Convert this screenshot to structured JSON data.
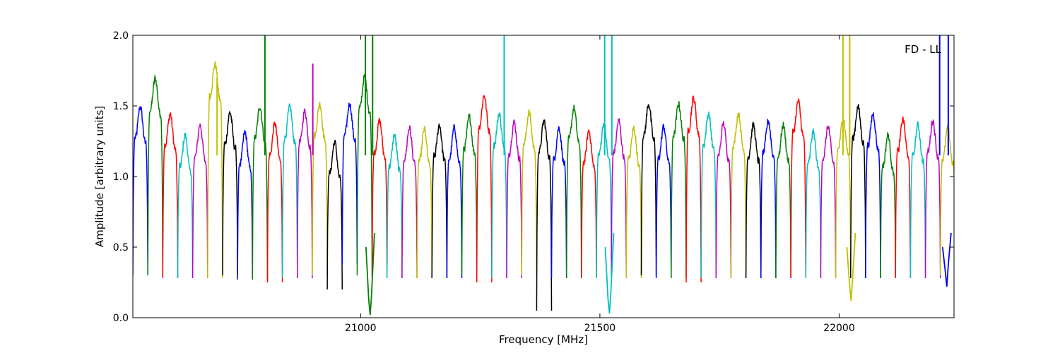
{
  "chart_data": {
    "type": "line",
    "title": "",
    "annotation": "FD - LL",
    "xlabel": "Frequency [MHz]",
    "ylabel": "Amplitude [arbitrary units]",
    "xlim": [
      20524,
      22240
    ],
    "ylim": [
      0.0,
      2.0
    ],
    "x_ticks": [
      21000,
      21500,
      22000
    ],
    "y_ticks": [
      0.0,
      0.5,
      1.0,
      1.5,
      2.0
    ],
    "y_tick_labels": [
      "0.0",
      "0.5",
      "1.0",
      "1.5",
      "2.0"
    ],
    "grid": false,
    "legend": "none",
    "bands": {
      "width_mhz": 31.25,
      "count": 55,
      "start_mhz": 20524,
      "color_cycle": [
        "#0000ff",
        "#008000",
        "#ff0000",
        "#00bfbf",
        "#bf00bf",
        "#bfbf00",
        "#000000"
      ],
      "band_peak": [
        1.4,
        1.6,
        1.35,
        1.2,
        1.27,
        1.7,
        1.36,
        1.22,
        1.4,
        1.28,
        1.4,
        1.37,
        1.42,
        1.15,
        1.42,
        1.61,
        1.3,
        1.2,
        1.25,
        1.24,
        1.27,
        1.25,
        1.33,
        1.48,
        1.35,
        1.29,
        1.36,
        1.3,
        1.25,
        1.39,
        1.23,
        1.28,
        1.3,
        1.25,
        1.42,
        1.26,
        1.42,
        1.46,
        1.35,
        1.28,
        1.35,
        1.27,
        1.3,
        1.27,
        1.44,
        1.22,
        1.26,
        1.32,
        1.4,
        1.35,
        1.2,
        1.31,
        1.27,
        1.3,
        1.25
      ],
      "band_trough": [
        0.3,
        0.3,
        0.28,
        0.28,
        0.28,
        0.28,
        0.3,
        0.27,
        0.27,
        0.25,
        0.28,
        0.28,
        0.3,
        0.2,
        0.38,
        0.3,
        0.28,
        0.28,
        0.28,
        0.28,
        0.28,
        0.28,
        0.3,
        0.25,
        0.28,
        0.28,
        0.3,
        0.05,
        0.28,
        0.28,
        0.28,
        0.28,
        0.28,
        0.28,
        0.3,
        0.28,
        0.28,
        0.25,
        0.28,
        0.28,
        0.28,
        0.28,
        0.28,
        0.28,
        0.28,
        0.28,
        0.28,
        0.28,
        0.28,
        0.28,
        0.28,
        0.28,
        0.28,
        0.28,
        0.3
      ]
    },
    "spikes": [
      {
        "x": 20700,
        "y": 1.7,
        "color": "#bfbf00"
      },
      {
        "x": 20800,
        "y": 2.0,
        "color": "#008000"
      },
      {
        "x": 20900,
        "y": 1.8,
        "color": "#bf00bf"
      },
      {
        "x": 21010,
        "y": 2.0,
        "color": "#008000"
      },
      {
        "x": 21025,
        "y": 2.0,
        "color": "#008000"
      },
      {
        "x": 21300,
        "y": 2.0,
        "color": "#00bfbf"
      },
      {
        "x": 21510,
        "y": 2.0,
        "color": "#00bfbf"
      },
      {
        "x": 21525,
        "y": 2.0,
        "color": "#00bfbf"
      },
      {
        "x": 22008,
        "y": 2.0,
        "color": "#bfbf00"
      },
      {
        "x": 22022,
        "y": 2.0,
        "color": "#bfbf00"
      },
      {
        "x": 22210,
        "y": 2.0,
        "color": "#0000ff"
      },
      {
        "x": 22228,
        "y": 2.0,
        "color": "#0000ff"
      }
    ],
    "dips": [
      {
        "x": 21020,
        "y": 0.02,
        "color": "#008000"
      },
      {
        "x": 21520,
        "y": 0.03,
        "color": "#00bfbf"
      },
      {
        "x": 22025,
        "y": 0.12,
        "color": "#bfbf00"
      },
      {
        "x": 22225,
        "y": 0.22,
        "color": "#0000ff"
      }
    ]
  }
}
